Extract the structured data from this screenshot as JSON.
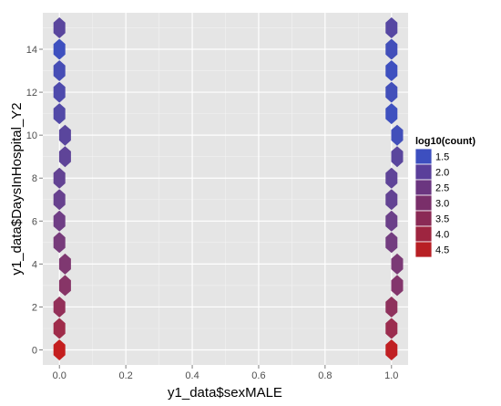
{
  "chart_data": {
    "type": "hexbin",
    "xlabel": "y1_data$sexMALE",
    "ylabel": "y1_data$DaysInHospital_Y2",
    "xlim": [
      -0.05,
      1.05
    ],
    "ylim": [
      -0.7,
      15.7
    ],
    "x_ticks": [
      0.0,
      0.2,
      0.4,
      0.6,
      0.8,
      1.0
    ],
    "x_tick_labels": [
      "0.0",
      "0.2",
      "0.4",
      "0.6",
      "0.8",
      "1.0"
    ],
    "y_ticks": [
      0,
      2,
      4,
      6,
      8,
      10,
      12,
      14
    ],
    "y_tick_labels": [
      "0",
      "2",
      "4",
      "6",
      "8",
      "10",
      "12",
      "14"
    ],
    "grid": true,
    "legend": {
      "title": "log10(count)",
      "placement": "right",
      "entries": [
        {
          "label": "1.5",
          "color": "#3d4fbf"
        },
        {
          "label": "2.0",
          "color": "#5a3f9a"
        },
        {
          "label": "2.5",
          "color": "#6b3680"
        },
        {
          "label": "3.0",
          "color": "#7a2f6a"
        },
        {
          "label": "3.5",
          "color": "#8a2a55"
        },
        {
          "label": "4.0",
          "color": "#9e2540"
        },
        {
          "label": "4.5",
          "color": "#b81f24"
        }
      ],
      "color_low": "#3a52c4",
      "color_high": "#c41e1e",
      "value_low": 1.3,
      "value_high": 4.7
    },
    "bins": [
      {
        "x": 0,
        "y": 0,
        "log10_count": 4.7
      },
      {
        "x": 0,
        "y": 1,
        "log10_count": 3.8
      },
      {
        "x": 0,
        "y": 2,
        "log10_count": 3.5
      },
      {
        "x": 0.017,
        "y": 3,
        "log10_count": 3.2
      },
      {
        "x": 0.017,
        "y": 4,
        "log10_count": 3.0
      },
      {
        "x": 0,
        "y": 5,
        "log10_count": 2.8
      },
      {
        "x": 0,
        "y": 6,
        "log10_count": 2.6
      },
      {
        "x": 0,
        "y": 7,
        "log10_count": 2.4
      },
      {
        "x": 0,
        "y": 8,
        "log10_count": 2.3
      },
      {
        "x": 0.017,
        "y": 9,
        "log10_count": 2.2
      },
      {
        "x": 0.017,
        "y": 10,
        "log10_count": 2.1
      },
      {
        "x": 0,
        "y": 11,
        "log10_count": 1.9
      },
      {
        "x": 0,
        "y": 12,
        "log10_count": 1.8
      },
      {
        "x": 0,
        "y": 13,
        "log10_count": 1.6
      },
      {
        "x": 0,
        "y": 14,
        "log10_count": 1.4
      },
      {
        "x": 0,
        "y": 15,
        "log10_count": 2.1
      },
      {
        "x": 1,
        "y": 0,
        "log10_count": 4.6
      },
      {
        "x": 1,
        "y": 1,
        "log10_count": 3.7
      },
      {
        "x": 1,
        "y": 2,
        "log10_count": 3.4
      },
      {
        "x": 1.017,
        "y": 3,
        "log10_count": 3.1
      },
      {
        "x": 1.017,
        "y": 4,
        "log10_count": 2.9
      },
      {
        "x": 1,
        "y": 5,
        "log10_count": 2.7
      },
      {
        "x": 1,
        "y": 6,
        "log10_count": 2.5
      },
      {
        "x": 1,
        "y": 7,
        "log10_count": 2.3
      },
      {
        "x": 1,
        "y": 8,
        "log10_count": 2.2
      },
      {
        "x": 1.017,
        "y": 9,
        "log10_count": 2.1
      },
      {
        "x": 1.017,
        "y": 10,
        "log10_count": 1.5
      },
      {
        "x": 1,
        "y": 11,
        "log10_count": 1.4
      },
      {
        "x": 1,
        "y": 12,
        "log10_count": 1.5
      },
      {
        "x": 1,
        "y": 13,
        "log10_count": 1.4
      },
      {
        "x": 1,
        "y": 14,
        "log10_count": 1.5
      },
      {
        "x": 1,
        "y": 15,
        "log10_count": 2.0
      }
    ]
  }
}
